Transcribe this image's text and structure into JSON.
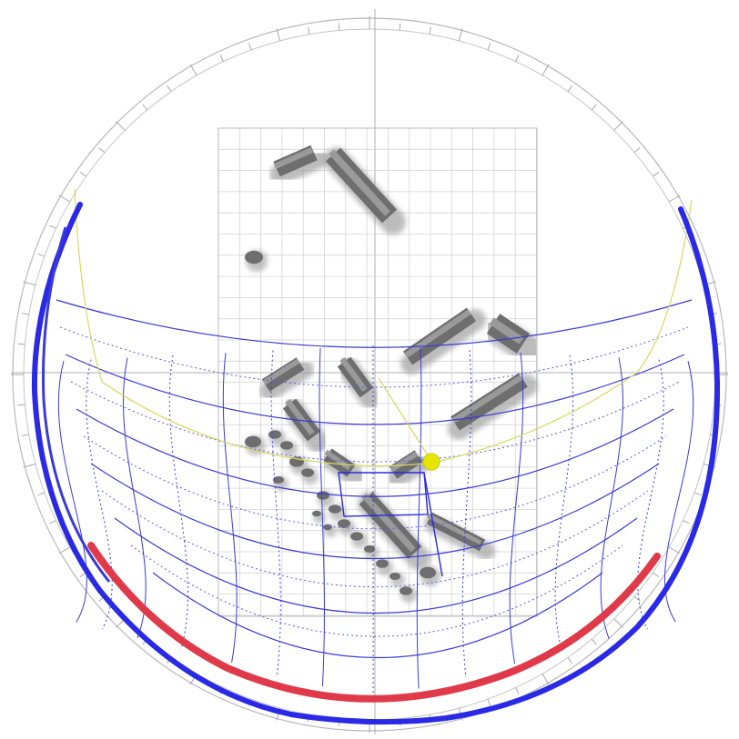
{
  "diagram": {
    "type": "sun-path-stereographic-overlay",
    "labels": [],
    "colors": {
      "background": "#ffffff",
      "ring": "#b8b8b8",
      "ticks": "#a0a0a0",
      "axes": "#b0b0b0",
      "grid": "#c8c8c8",
      "sunpath": "#3a3ad8",
      "sunpath_bold": "#2020e0",
      "season_arc": "#e03a4a",
      "horizon": "#d8d860",
      "sun": "#e6e600",
      "building": "#707070"
    },
    "icons": [
      "sun-marker-icon"
    ]
  }
}
